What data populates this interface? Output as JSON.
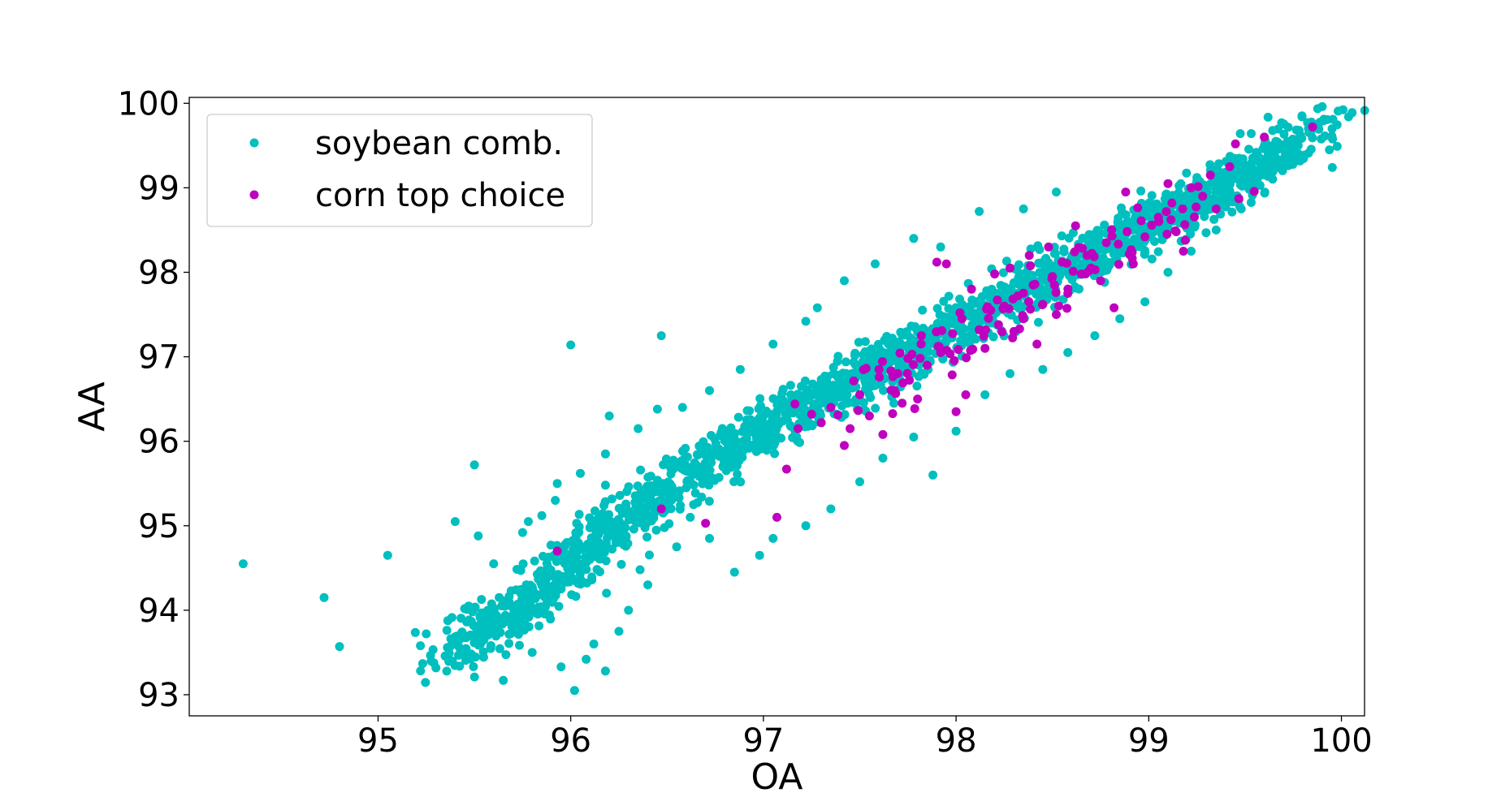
{
  "chart_data": {
    "type": "scatter",
    "title": "",
    "xlabel": "OA",
    "ylabel": "AA",
    "xlim": [
      94.02,
      100.12
    ],
    "ylim": [
      92.75,
      100.07
    ],
    "xticks": [
      95,
      96,
      97,
      98,
      99,
      100
    ],
    "yticks": [
      93,
      94,
      95,
      96,
      97,
      98,
      99,
      100
    ],
    "grid": false,
    "legend_position": "top-left",
    "series": [
      {
        "name": "soybean comb.",
        "color": "#00bfbf",
        "points": [
          [
            94.3,
            94.55
          ],
          [
            94.72,
            94.15
          ],
          [
            94.8,
            93.57
          ],
          [
            95.05,
            94.65
          ],
          [
            95.25,
            93.72
          ],
          [
            95.4,
            95.05
          ],
          [
            95.5,
            95.72
          ],
          [
            95.47,
            94.05
          ],
          [
            95.52,
            94.88
          ],
          [
            95.55,
            93.65
          ],
          [
            95.6,
            94.55
          ],
          [
            95.65,
            93.17
          ],
          [
            95.68,
            94.1
          ],
          [
            95.75,
            94.92
          ],
          [
            95.8,
            93.5
          ],
          [
            95.85,
            95.12
          ],
          [
            95.93,
            95.5
          ],
          [
            96.0,
            97.14
          ],
          [
            95.95,
            93.33
          ],
          [
            96.02,
            93.05
          ],
          [
            96.08,
            93.42
          ],
          [
            96.12,
            93.6
          ],
          [
            96.18,
            93.28
          ],
          [
            96.2,
            96.3
          ],
          [
            96.25,
            93.75
          ],
          [
            96.47,
            97.25
          ],
          [
            96.45,
            96.38
          ],
          [
            96.3,
            94.0
          ],
          [
            96.4,
            94.3
          ],
          [
            96.55,
            94.75
          ],
          [
            96.62,
            95.1
          ],
          [
            96.72,
            94.85
          ],
          [
            96.85,
            94.45
          ],
          [
            96.98,
            94.65
          ],
          [
            97.05,
            94.85
          ],
          [
            97.22,
            95.0
          ],
          [
            97.35,
            95.2
          ],
          [
            97.5,
            95.52
          ],
          [
            97.62,
            95.8
          ],
          [
            97.78,
            96.05
          ],
          [
            97.88,
            95.6
          ],
          [
            98.0,
            96.12
          ],
          [
            98.15,
            96.55
          ],
          [
            98.28,
            96.8
          ],
          [
            98.45,
            96.85
          ],
          [
            98.58,
            97.05
          ],
          [
            98.72,
            97.25
          ],
          [
            98.85,
            97.45
          ],
          [
            98.98,
            97.65
          ],
          [
            99.1,
            98.0
          ],
          [
            99.22,
            98.25
          ],
          [
            99.35,
            98.5
          ],
          [
            99.48,
            98.75
          ],
          [
            99.62,
            99.35
          ],
          [
            99.72,
            99.55
          ],
          [
            99.78,
            99.68
          ],
          [
            99.7,
            99.45
          ],
          [
            98.52,
            98.95
          ],
          [
            98.35,
            98.75
          ],
          [
            98.12,
            98.72
          ],
          [
            97.92,
            98.3
          ],
          [
            97.78,
            98.4
          ],
          [
            97.58,
            98.1
          ],
          [
            97.42,
            97.9
          ],
          [
            97.28,
            97.58
          ],
          [
            97.22,
            97.42
          ],
          [
            97.05,
            97.15
          ],
          [
            96.88,
            96.85
          ],
          [
            96.72,
            96.6
          ],
          [
            96.58,
            96.4
          ],
          [
            96.35,
            96.15
          ],
          [
            96.18,
            95.85
          ],
          [
            96.05,
            95.62
          ],
          [
            95.92,
            95.3
          ],
          [
            95.78,
            95.05
          ]
        ],
        "cloud": [
          [
            95.55,
            93.7
          ],
          [
            95.75,
            94.1
          ],
          [
            96.0,
            94.55
          ],
          [
            96.25,
            95.0
          ],
          [
            96.5,
            95.42
          ],
          [
            96.75,
            95.8
          ],
          [
            97.0,
            96.12
          ],
          [
            97.25,
            96.45
          ],
          [
            97.5,
            96.75
          ],
          [
            97.75,
            97.05
          ],
          [
            98.0,
            97.35
          ],
          [
            98.25,
            97.65
          ],
          [
            98.5,
            97.95
          ],
          [
            98.75,
            98.25
          ],
          [
            99.0,
            98.55
          ],
          [
            99.25,
            98.85
          ],
          [
            99.5,
            99.15
          ],
          [
            99.7,
            99.5
          ]
        ]
      },
      {
        "name": "corn top choice",
        "color": "#bf00bf",
        "points": [
          [
            95.93,
            94.7
          ],
          [
            96.47,
            95.2
          ],
          [
            96.7,
            95.03
          ],
          [
            97.07,
            95.1
          ],
          [
            97.12,
            95.67
          ],
          [
            97.18,
            96.15
          ],
          [
            97.25,
            96.32
          ],
          [
            97.3,
            96.22
          ],
          [
            97.35,
            96.4
          ],
          [
            97.42,
            95.95
          ],
          [
            97.45,
            96.15
          ],
          [
            97.5,
            96.55
          ],
          [
            97.55,
            96.3
          ],
          [
            97.6,
            96.85
          ],
          [
            97.62,
            96.08
          ],
          [
            97.68,
            96.6
          ],
          [
            97.72,
            96.45
          ],
          [
            97.75,
            96.98
          ],
          [
            97.8,
            96.5
          ],
          [
            97.82,
            97.25
          ],
          [
            97.85,
            96.9
          ],
          [
            97.9,
            98.12
          ],
          [
            97.92,
            97.05
          ],
          [
            97.95,
            98.1
          ],
          [
            98.0,
            96.35
          ],
          [
            98.02,
            97.52
          ],
          [
            98.05,
            96.55
          ],
          [
            98.08,
            97.8
          ],
          [
            98.12,
            97.32
          ],
          [
            98.15,
            97.1
          ],
          [
            98.18,
            97.55
          ],
          [
            98.2,
            97.98
          ],
          [
            98.22,
            97.38
          ],
          [
            98.25,
            97.6
          ],
          [
            98.28,
            98.05
          ],
          [
            98.3,
            97.3
          ],
          [
            98.32,
            97.72
          ],
          [
            98.35,
            97.45
          ],
          [
            98.38,
            98.2
          ],
          [
            98.4,
            97.85
          ],
          [
            98.42,
            97.15
          ],
          [
            98.45,
            97.62
          ],
          [
            98.48,
            98.3
          ],
          [
            98.5,
            97.95
          ],
          [
            98.52,
            97.5
          ],
          [
            98.55,
            98.12
          ],
          [
            98.58,
            97.75
          ],
          [
            98.62,
            98.55
          ],
          [
            98.65,
            97.98
          ],
          [
            98.68,
            98.2
          ],
          [
            98.7,
            98.05
          ],
          [
            98.75,
            97.9
          ],
          [
            98.78,
            98.35
          ],
          [
            98.82,
            97.58
          ],
          [
            98.88,
            98.95
          ],
          [
            98.92,
            98.1
          ],
          [
            98.98,
            98.42
          ],
          [
            99.05,
            98.65
          ],
          [
            99.1,
            99.05
          ],
          [
            99.12,
            98.82
          ],
          [
            99.18,
            98.25
          ],
          [
            99.22,
            99.0
          ],
          [
            99.28,
            98.9
          ],
          [
            99.32,
            99.15
          ],
          [
            99.35,
            98.75
          ],
          [
            99.42,
            99.25
          ],
          [
            99.45,
            99.52
          ],
          [
            99.6,
            99.6
          ],
          [
            99.85,
            99.72
          ]
        ],
        "cloud": [
          [
            97.6,
            96.6
          ],
          [
            97.85,
            96.95
          ],
          [
            98.1,
            97.3
          ],
          [
            98.35,
            97.62
          ],
          [
            98.6,
            97.95
          ],
          [
            98.85,
            98.3
          ],
          [
            99.1,
            98.62
          ]
        ]
      }
    ]
  }
}
